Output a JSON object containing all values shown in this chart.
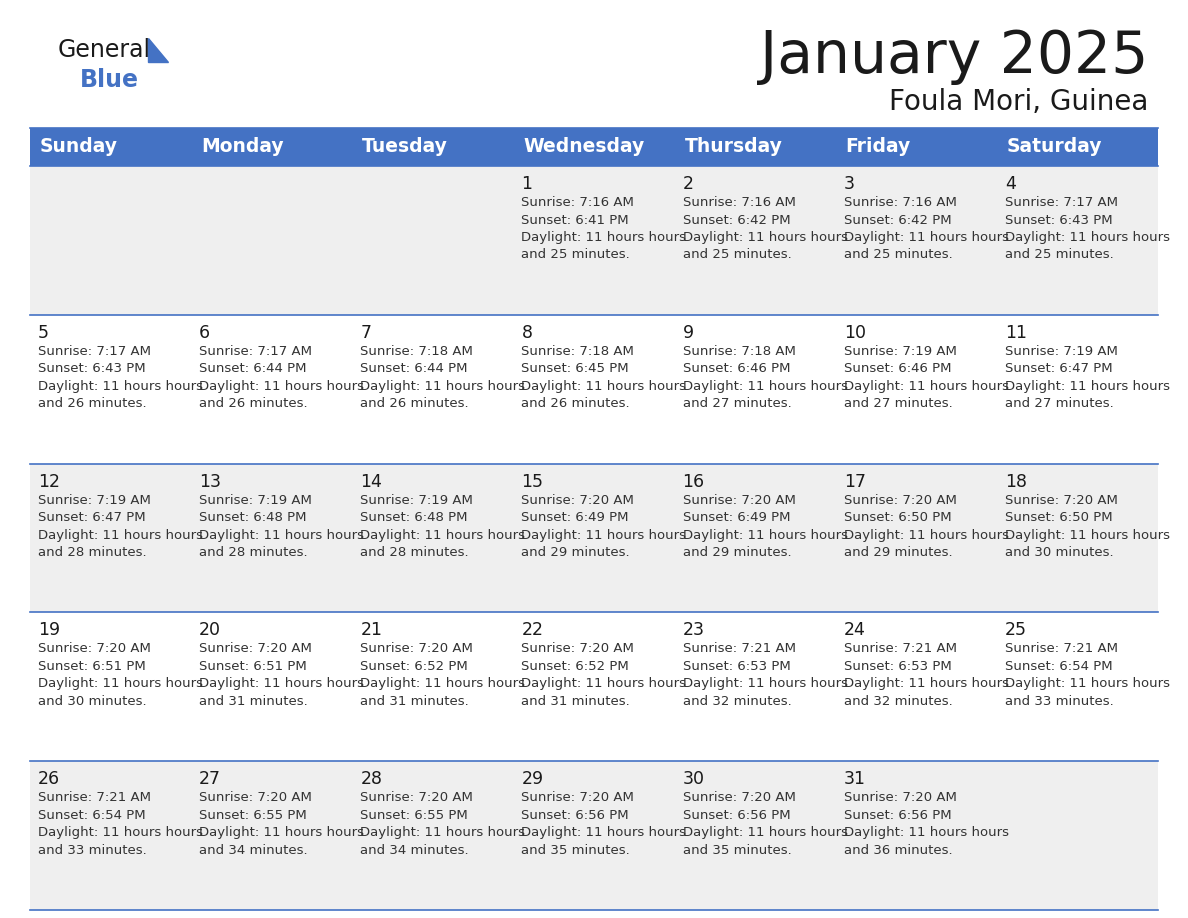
{
  "title": "January 2025",
  "subtitle": "Foula Mori, Guinea",
  "header_bg": "#4472C4",
  "header_text_color": "#FFFFFF",
  "days_of_week": [
    "Sunday",
    "Monday",
    "Tuesday",
    "Wednesday",
    "Thursday",
    "Friday",
    "Saturday"
  ],
  "row_bg_odd": "#EFEFEF",
  "row_bg_even": "#FFFFFF",
  "cell_text_color": "#333333",
  "day_num_color": "#1a1a1a",
  "grid_line_color": "#4472C4",
  "logo_general_color": "#1a1a1a",
  "logo_blue_color": "#4472C4",
  "title_color": "#1a1a1a",
  "calendar_data": [
    [
      {
        "day": "",
        "sunrise": "",
        "sunset": "",
        "daylight": ""
      },
      {
        "day": "",
        "sunrise": "",
        "sunset": "",
        "daylight": ""
      },
      {
        "day": "",
        "sunrise": "",
        "sunset": "",
        "daylight": ""
      },
      {
        "day": "1",
        "sunrise": "7:16 AM",
        "sunset": "6:41 PM",
        "daylight": "11 hours and 25 minutes."
      },
      {
        "day": "2",
        "sunrise": "7:16 AM",
        "sunset": "6:42 PM",
        "daylight": "11 hours and 25 minutes."
      },
      {
        "day": "3",
        "sunrise": "7:16 AM",
        "sunset": "6:42 PM",
        "daylight": "11 hours and 25 minutes."
      },
      {
        "day": "4",
        "sunrise": "7:17 AM",
        "sunset": "6:43 PM",
        "daylight": "11 hours and 25 minutes."
      }
    ],
    [
      {
        "day": "5",
        "sunrise": "7:17 AM",
        "sunset": "6:43 PM",
        "daylight": "11 hours and 26 minutes."
      },
      {
        "day": "6",
        "sunrise": "7:17 AM",
        "sunset": "6:44 PM",
        "daylight": "11 hours and 26 minutes."
      },
      {
        "day": "7",
        "sunrise": "7:18 AM",
        "sunset": "6:44 PM",
        "daylight": "11 hours and 26 minutes."
      },
      {
        "day": "8",
        "sunrise": "7:18 AM",
        "sunset": "6:45 PM",
        "daylight": "11 hours and 26 minutes."
      },
      {
        "day": "9",
        "sunrise": "7:18 AM",
        "sunset": "6:46 PM",
        "daylight": "11 hours and 27 minutes."
      },
      {
        "day": "10",
        "sunrise": "7:19 AM",
        "sunset": "6:46 PM",
        "daylight": "11 hours and 27 minutes."
      },
      {
        "day": "11",
        "sunrise": "7:19 AM",
        "sunset": "6:47 PM",
        "daylight": "11 hours and 27 minutes."
      }
    ],
    [
      {
        "day": "12",
        "sunrise": "7:19 AM",
        "sunset": "6:47 PM",
        "daylight": "11 hours and 28 minutes."
      },
      {
        "day": "13",
        "sunrise": "7:19 AM",
        "sunset": "6:48 PM",
        "daylight": "11 hours and 28 minutes."
      },
      {
        "day": "14",
        "sunrise": "7:19 AM",
        "sunset": "6:48 PM",
        "daylight": "11 hours and 28 minutes."
      },
      {
        "day": "15",
        "sunrise": "7:20 AM",
        "sunset": "6:49 PM",
        "daylight": "11 hours and 29 minutes."
      },
      {
        "day": "16",
        "sunrise": "7:20 AM",
        "sunset": "6:49 PM",
        "daylight": "11 hours and 29 minutes."
      },
      {
        "day": "17",
        "sunrise": "7:20 AM",
        "sunset": "6:50 PM",
        "daylight": "11 hours and 29 minutes."
      },
      {
        "day": "18",
        "sunrise": "7:20 AM",
        "sunset": "6:50 PM",
        "daylight": "11 hours and 30 minutes."
      }
    ],
    [
      {
        "day": "19",
        "sunrise": "7:20 AM",
        "sunset": "6:51 PM",
        "daylight": "11 hours and 30 minutes."
      },
      {
        "day": "20",
        "sunrise": "7:20 AM",
        "sunset": "6:51 PM",
        "daylight": "11 hours and 31 minutes."
      },
      {
        "day": "21",
        "sunrise": "7:20 AM",
        "sunset": "6:52 PM",
        "daylight": "11 hours and 31 minutes."
      },
      {
        "day": "22",
        "sunrise": "7:20 AM",
        "sunset": "6:52 PM",
        "daylight": "11 hours and 31 minutes."
      },
      {
        "day": "23",
        "sunrise": "7:21 AM",
        "sunset": "6:53 PM",
        "daylight": "11 hours and 32 minutes."
      },
      {
        "day": "24",
        "sunrise": "7:21 AM",
        "sunset": "6:53 PM",
        "daylight": "11 hours and 32 minutes."
      },
      {
        "day": "25",
        "sunrise": "7:21 AM",
        "sunset": "6:54 PM",
        "daylight": "11 hours and 33 minutes."
      }
    ],
    [
      {
        "day": "26",
        "sunrise": "7:21 AM",
        "sunset": "6:54 PM",
        "daylight": "11 hours and 33 minutes."
      },
      {
        "day": "27",
        "sunrise": "7:20 AM",
        "sunset": "6:55 PM",
        "daylight": "11 hours and 34 minutes."
      },
      {
        "day": "28",
        "sunrise": "7:20 AM",
        "sunset": "6:55 PM",
        "daylight": "11 hours and 34 minutes."
      },
      {
        "day": "29",
        "sunrise": "7:20 AM",
        "sunset": "6:56 PM",
        "daylight": "11 hours and 35 minutes."
      },
      {
        "day": "30",
        "sunrise": "7:20 AM",
        "sunset": "6:56 PM",
        "daylight": "11 hours and 35 minutes."
      },
      {
        "day": "31",
        "sunrise": "7:20 AM",
        "sunset": "6:56 PM",
        "daylight": "11 hours and 36 minutes."
      },
      {
        "day": "",
        "sunrise": "",
        "sunset": "",
        "daylight": ""
      }
    ]
  ]
}
